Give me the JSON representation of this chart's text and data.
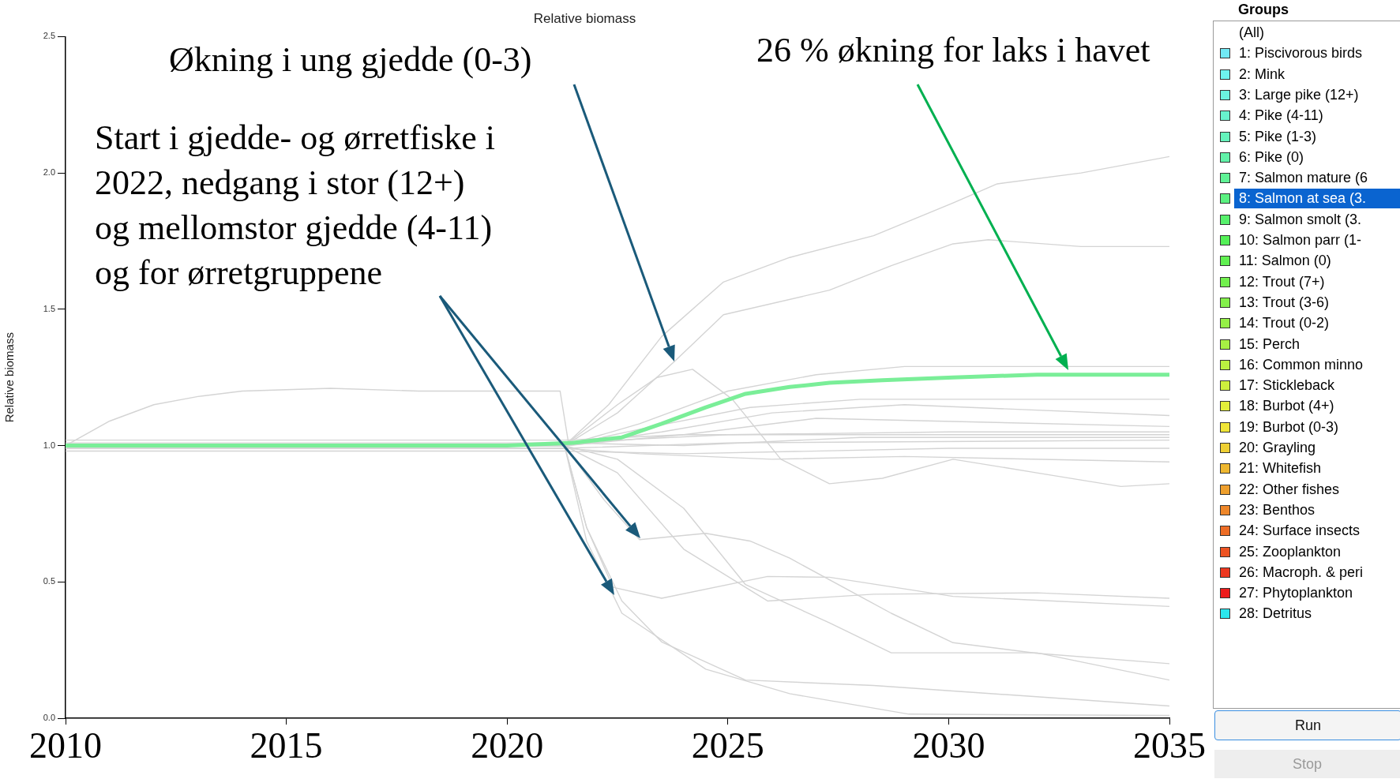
{
  "chart_data": {
    "type": "line",
    "title": "Relative biomass",
    "ylabel": "Relative biomass",
    "marker": "none",
    "xlim": [
      2010,
      2035
    ],
    "xticks": [
      2010,
      2015,
      2020,
      2025,
      2030,
      2035
    ],
    "ylim": [
      0,
      2.5
    ],
    "yticks": [
      {
        "value": 0,
        "label": "0.0"
      },
      {
        "value": 0.5,
        "label": "0.5"
      },
      {
        "value": 1,
        "label": "1.0"
      },
      {
        "value": 1.5,
        "label": "1.5"
      },
      {
        "value": 2,
        "label": "2.0"
      },
      {
        "value": 2.5,
        "label": "2.5"
      }
    ],
    "series": [
      {
        "color": "#7aee98",
        "x": [
          2010,
          2015,
          2020,
          2021.5,
          2022.6,
          2023.5,
          2024.5,
          2025.4,
          2026.4,
          2027.3,
          2028.5,
          2030.1,
          2032,
          2035
        ],
        "values": [
          1.0,
          1.0,
          1.0,
          1.01,
          1.03,
          1.08,
          1.14,
          1.19,
          1.215,
          1.23,
          1.24,
          1.25,
          1.26,
          1.26
        ]
      },
      {
        "color": "#d4d4d4",
        "x": [
          2010,
          2011,
          2012,
          2013,
          2014,
          2016,
          2018,
          2021.2,
          2021.4,
          2022.5,
          2025,
          2030,
          2035
        ],
        "values": [
          1.0,
          1.09,
          1.15,
          1.18,
          1.2,
          1.21,
          1.2,
          1.2,
          1.0,
          1.02,
          1.04,
          1.05,
          1.05
        ]
      },
      {
        "color": "#d4d4d4",
        "x": [
          2010,
          2021.3,
          2022.3,
          2023.5,
          2024.9,
          2026.4,
          2028.3,
          2030.1,
          2031.1,
          2033,
          2035
        ],
        "values": [
          1.0,
          1.0,
          1.15,
          1.4,
          1.6,
          1.69,
          1.77,
          1.89,
          1.96,
          2.0,
          2.06
        ]
      },
      {
        "color": "#d4d4d4",
        "x": [
          2010,
          2021.3,
          2022.5,
          2023.8,
          2024.9,
          2027.3,
          2028.7,
          2030.1,
          2030.9,
          2033,
          2035
        ],
        "values": [
          1.0,
          1.0,
          1.12,
          1.31,
          1.48,
          1.57,
          1.66,
          1.74,
          1.755,
          1.73,
          1.73
        ]
      },
      {
        "color": "#d4d4d4",
        "x": [
          2010,
          2021.3,
          2022.5,
          2023.4,
          2024.2,
          2025.1,
          2026.2,
          2027.3,
          2028.5,
          2030.1,
          2032,
          2033.9,
          2035
        ],
        "values": [
          1.0,
          1.0,
          1.15,
          1.25,
          1.28,
          1.17,
          0.95,
          0.86,
          0.88,
          0.95,
          0.9,
          0.85,
          0.86
        ]
      },
      {
        "color": "#d4d4d4",
        "x": [
          2010,
          2021.3,
          2023,
          2025,
          2027,
          2029,
          2035
        ],
        "values": [
          1.0,
          1.0,
          1.08,
          1.2,
          1.26,
          1.29,
          1.29
        ]
      },
      {
        "color": "#d4d4d4",
        "x": [
          2010,
          2021.3,
          2023,
          2025.5,
          2028,
          2035
        ],
        "values": [
          1.0,
          1.0,
          1.06,
          1.14,
          1.17,
          1.17
        ]
      },
      {
        "color": "#d4d4d4",
        "x": [
          2010,
          2021.3,
          2023.5,
          2026,
          2029,
          2035
        ],
        "values": [
          1.0,
          1.0,
          1.05,
          1.12,
          1.15,
          1.11
        ]
      },
      {
        "color": "#d4d4d4",
        "x": [
          2010,
          2021.3,
          2024,
          2027,
          2035
        ],
        "values": [
          1.0,
          1.0,
          1.04,
          1.1,
          1.07
        ]
      },
      {
        "color": "#d4d4d4",
        "x": [
          2010,
          2021.3,
          2024,
          2035
        ],
        "values": [
          1.02,
          1.02,
          1.04,
          1.04
        ]
      },
      {
        "color": "#d4d4d4",
        "x": [
          2010,
          2021.3,
          2025,
          2035
        ],
        "values": [
          0.99,
          0.99,
          1.01,
          1.02
        ]
      },
      {
        "color": "#d4d4d4",
        "x": [
          2010,
          2021.3,
          2024,
          2030,
          2035
        ],
        "values": [
          0.98,
          0.98,
          0.97,
          0.99,
          0.99
        ]
      },
      {
        "color": "#d4d4d4",
        "x": [
          2010,
          2021.3,
          2023,
          2026,
          2029,
          2035
        ],
        "values": [
          0.99,
          0.99,
          0.97,
          0.95,
          0.96,
          0.94
        ]
      },
      {
        "color": "#d4d4d4",
        "x": [
          2010,
          2021.3,
          2024,
          2028,
          2035
        ],
        "values": [
          1.01,
          1.01,
          1.0,
          1.03,
          1.03
        ]
      },
      {
        "color": "#d4d4d4",
        "x": [
          2010,
          2021.3,
          2022.2,
          2023,
          2024.5,
          2025.5,
          2026.4,
          2028.7,
          2030.1,
          2032,
          2035
        ],
        "values": [
          1.0,
          1.0,
          0.8,
          0.655,
          0.678,
          0.65,
          0.587,
          0.385,
          0.277,
          0.238,
          0.2
        ]
      },
      {
        "color": "#d4d4d4",
        "x": [
          2010,
          2021.3,
          2021.8,
          2022.4,
          2023.5,
          2025.9,
          2027.3,
          2030.1,
          2035
        ],
        "values": [
          1.0,
          1.0,
          0.7,
          0.48,
          0.44,
          0.52,
          0.517,
          0.447,
          0.41
        ]
      },
      {
        "color": "#d4d4d4",
        "x": [
          2010,
          2021.3,
          2022.5,
          2024,
          2025.9,
          2028.3,
          2032,
          2035
        ],
        "values": [
          1.0,
          1.0,
          0.9,
          0.62,
          0.43,
          0.455,
          0.46,
          0.44
        ]
      },
      {
        "color": "#d4d4d4",
        "x": [
          2010,
          2021.3,
          2022.5,
          2024,
          2025.4,
          2027.3,
          2028.7,
          2032,
          2035
        ],
        "values": [
          1.0,
          1.0,
          0.95,
          0.77,
          0.49,
          0.35,
          0.24,
          0.24,
          0.14
        ]
      },
      {
        "color": "#d4d4d4",
        "x": [
          2010,
          2021.3,
          2021.8,
          2022.6,
          2023.5,
          2025.4,
          2028.3,
          2030.1,
          2035
        ],
        "values": [
          1.0,
          1.0,
          0.7,
          0.43,
          0.28,
          0.14,
          0.12,
          0.1,
          0.045
        ]
      },
      {
        "color": "#d4d4d4",
        "x": [
          2010,
          2021.3,
          2021.8,
          2022.6,
          2024.5,
          2026.4,
          2029.1,
          2035
        ],
        "values": [
          1.0,
          1.0,
          0.65,
          0.385,
          0.18,
          0.09,
          0.015,
          0.01
        ]
      }
    ],
    "annotations": [
      "Økning i ung gjedde (0-3)",
      "26 % økning for laks i havet",
      "Start i gjedde- og ørretfiske i 2022, nedgang i stor (12+) og mellomstor gjedde (4-11) og for ørretgruppene",
      "Groups",
      "(All)",
      "1: Piscivorous birds",
      "2: Mink",
      "3: Large pike (12+)",
      "4: Pike (4-11)",
      "5: Pike (1-3)",
      "6: Pike (0)",
      "7: Salmon mature (6",
      "8: Salmon at sea (3.",
      "9: Salmon smolt (3.",
      "10: Salmon parr (1-",
      "11: Salmon (0)",
      "12: Trout (7+)",
      "13: Trout (3-6)",
      "14: Trout (0-2)",
      "15: Perch",
      "16: Common minno",
      "17: Stickleback",
      "18: Burbot (4+)",
      "19: Burbot (0-3)",
      "20: Grayling",
      "21: Whitefish",
      "22: Other fishes",
      "23: Benthos",
      "24: Surface insects",
      "25: Zooplankton",
      "26: Macroph. & peri",
      "27: Phytoplankton",
      "28: Detritus",
      "Run",
      "Stop"
    ]
  }
}
